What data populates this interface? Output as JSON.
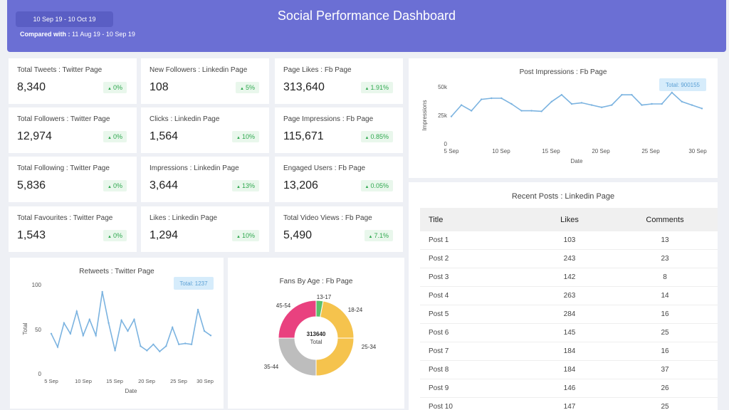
{
  "header": {
    "date_range": "10 Sep 19 - 10 Oct 19",
    "compared_label": "Compared with :",
    "compared_range": "11 Aug 19 - 10 Sep 19",
    "title": "Social Performance Dashboard"
  },
  "kpis": [
    {
      "label": "Total Tweets : Twitter Page",
      "value": "8,340",
      "change": "0%"
    },
    {
      "label": "New Followers : Linkedin Page",
      "value": "108",
      "change": "5%"
    },
    {
      "label": "Page Likes : Fb Page",
      "value": "313,640",
      "change": "1.91%"
    },
    {
      "label": "Total Followers : Twitter Page",
      "value": "12,974",
      "change": "0%"
    },
    {
      "label": "Clicks : Linkedin Page",
      "value": "1,564",
      "change": "10%"
    },
    {
      "label": "Page Impressions : Fb Page",
      "value": "115,671",
      "change": "0.85%"
    },
    {
      "label": "Total Following : Twitter Page",
      "value": "5,836",
      "change": "0%"
    },
    {
      "label": "Impressions : Linkedin Page",
      "value": "3,644",
      "change": "13%"
    },
    {
      "label": "Engaged Users : Fb Page",
      "value": "13,206",
      "change": "0.05%"
    },
    {
      "label": "Total Favourites : Twitter Page",
      "value": "1,543",
      "change": "0%"
    },
    {
      "label": "Likes : Linkedin Page",
      "value": "1,294",
      "change": "10%"
    },
    {
      "label": "Total Video Views : Fb Page",
      "value": "5,490",
      "change": "7.1%"
    }
  ],
  "post_impressions": {
    "title": "Post Impressions : Fb Page",
    "total_label": "Total: 900155",
    "ylabel": "Impressions",
    "xlabel": "Date",
    "yticks": [
      "50k",
      "25k",
      "0"
    ],
    "xticks": [
      "5 Sep",
      "10 Sep",
      "15 Sep",
      "20 Sep",
      "25 Sep",
      "30 Sep"
    ]
  },
  "retweets": {
    "title": "Retweets : Twitter Page",
    "total_label": "Total: 1237",
    "ylabel": "Total",
    "xlabel": "Date",
    "yticks": [
      "100",
      "50",
      "0"
    ],
    "xticks": [
      "5 Sep",
      "10 Sep",
      "15 Sep",
      "20 Sep",
      "25 Sep",
      "30 Sep"
    ]
  },
  "fans_by_age": {
    "title": "Fans By Age : Fb Page",
    "center_value": "313640",
    "center_label": "Total"
  },
  "recent_posts": {
    "title": "Recent Posts : Linkedin Page",
    "columns": [
      "Title",
      "Likes",
      "Comments"
    ],
    "rows": [
      [
        "Post 1",
        "103",
        "13"
      ],
      [
        "Post 2",
        "243",
        "23"
      ],
      [
        "Post 3",
        "142",
        "8"
      ],
      [
        "Post 4",
        "263",
        "14"
      ],
      [
        "Post 5",
        "284",
        "16"
      ],
      [
        "Post 6",
        "145",
        "25"
      ],
      [
        "Post 7",
        "184",
        "16"
      ],
      [
        "Post 8",
        "184",
        "37"
      ],
      [
        "Post 9",
        "146",
        "26"
      ],
      [
        "Post 10",
        "147",
        "25"
      ]
    ]
  },
  "chart_data": [
    {
      "type": "line",
      "title": "Post Impressions : Fb Page",
      "xlabel": "Date",
      "ylabel": "Impressions",
      "x": [
        "5 Sep",
        "6 Sep",
        "7 Sep",
        "8 Sep",
        "9 Sep",
        "10 Sep",
        "11 Sep",
        "12 Sep",
        "13 Sep",
        "14 Sep",
        "15 Sep",
        "16 Sep",
        "17 Sep",
        "18 Sep",
        "19 Sep",
        "20 Sep",
        "21 Sep",
        "22 Sep",
        "23 Sep",
        "24 Sep",
        "25 Sep",
        "26 Sep",
        "27 Sep",
        "28 Sep",
        "29 Sep",
        "30 Sep"
      ],
      "series": [
        {
          "values": [
            24000,
            34000,
            29000,
            39000,
            40000,
            40000,
            35000,
            29000,
            29000,
            28500,
            37000,
            43000,
            35000,
            36000,
            34000,
            32000,
            34000,
            43000,
            43000,
            34000,
            35000,
            35000,
            45000,
            37000,
            34000,
            31000
          ]
        }
      ],
      "ylim": [
        0,
        50000
      ],
      "grid": false,
      "color": "#7bb3e0"
    },
    {
      "type": "line",
      "title": "Retweets : Twitter Page",
      "xlabel": "Date",
      "ylabel": "Total",
      "x": [
        "5 Sep",
        "6 Sep",
        "7 Sep",
        "8 Sep",
        "9 Sep",
        "10 Sep",
        "11 Sep",
        "12 Sep",
        "13 Sep",
        "14 Sep",
        "15 Sep",
        "16 Sep",
        "17 Sep",
        "18 Sep",
        "19 Sep",
        "20 Sep",
        "21 Sep",
        "22 Sep",
        "23 Sep",
        "24 Sep",
        "25 Sep",
        "26 Sep",
        "27 Sep",
        "28 Sep",
        "29 Sep",
        "30 Sep"
      ],
      "series": [
        {
          "values": [
            45,
            30,
            57,
            45,
            70,
            43,
            61,
            43,
            92,
            57,
            26,
            60,
            48,
            61,
            31,
            26,
            33,
            25,
            31,
            52,
            33,
            34,
            33,
            72,
            48,
            43
          ]
        }
      ],
      "ylim": [
        0,
        100
      ],
      "grid": false,
      "color": "#7bb3e0"
    },
    {
      "type": "pie",
      "title": "Fans By Age : Fb Page",
      "categories": [
        "13-17",
        "18-24",
        "25-34",
        "35-44",
        "45-54"
      ],
      "values": [
        3,
        22,
        25,
        25,
        25
      ],
      "colors": [
        "#5cc06b",
        "#f5c34d",
        "#f5c34d",
        "#bdbdbd",
        "#e9417f"
      ]
    }
  ]
}
